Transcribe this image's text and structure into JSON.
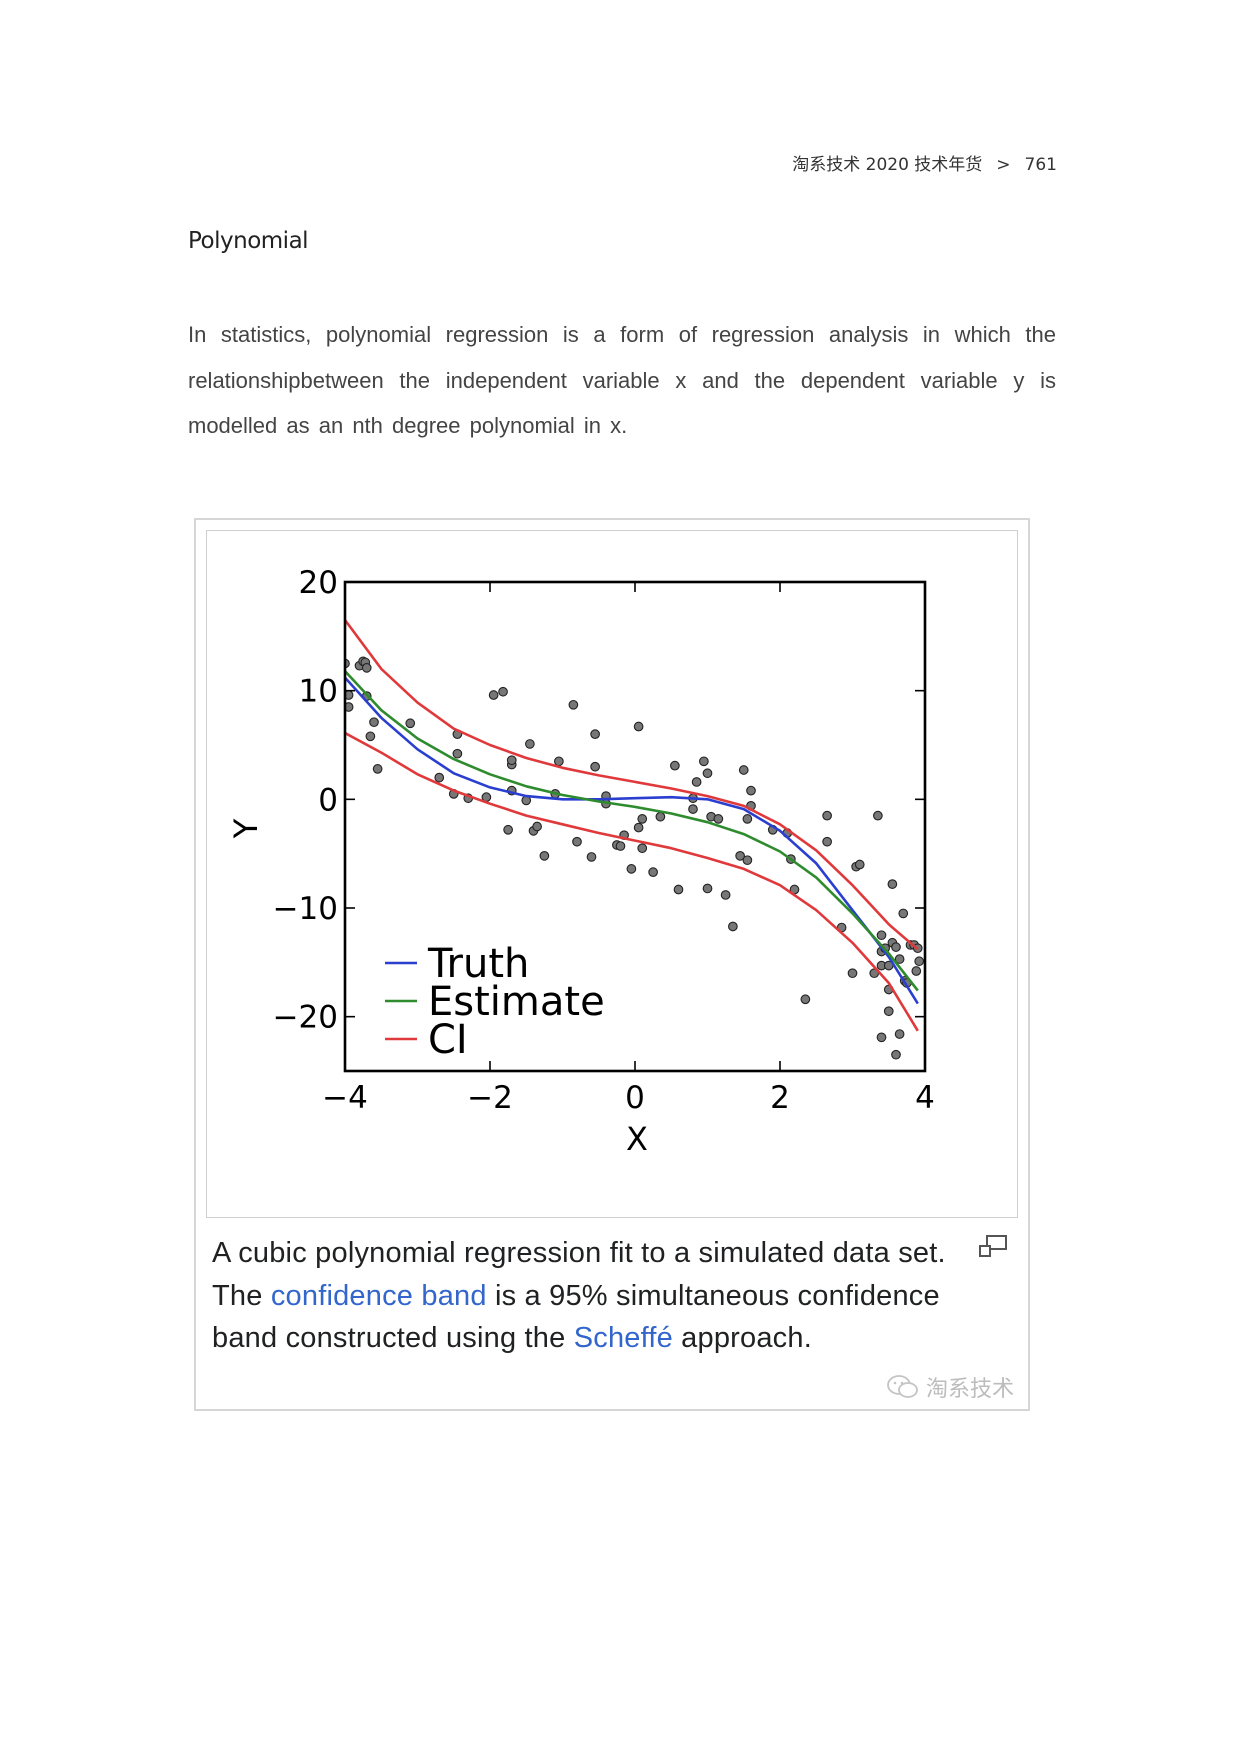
{
  "header": {
    "book_title": "淘系技术 2020 技术年货",
    "separator": ">",
    "page_number": "761"
  },
  "section_title": "Polynomial",
  "paragraph": "In statistics, polynomial regression is a form of regression analysis in which the relationshipbetween the independent variable x and the dependent variable y is modelled as an nth degree polynomial in x.",
  "figure": {
    "caption": {
      "part1": "A cubic polynomial regression fit to a simulated data set. The ",
      "link1": "confidence band",
      "part2": " is a 95% simultaneous confidence band constructed using the ",
      "link2": "Scheffé",
      "part3": " approach."
    },
    "enlarge_icon": "enlarge-icon",
    "watermark": "淘系技术",
    "watermark_icon": "wechat-icon"
  },
  "chart_data": {
    "type": "scatter",
    "xlabel": "X",
    "ylabel": "Y",
    "xlim": [
      -4,
      4
    ],
    "ylim": [
      -25,
      20
    ],
    "xticks": [
      -4,
      -2,
      0,
      2,
      4
    ],
    "yticks": [
      20,
      10,
      0,
      -10,
      -20
    ],
    "xtick_labels": [
      "−4",
      "−2",
      "0",
      "2",
      "4"
    ],
    "ytick_labels": [
      "20",
      "10",
      "0",
      "−10",
      "−20"
    ],
    "grid": false,
    "legend_position": "bottom-left",
    "colors": {
      "Truth": "#2a3fd0",
      "Estimate": "#2e8b2e",
      "CI": "#e0393b",
      "points": "#777777"
    },
    "lines": [
      {
        "name": "Truth",
        "x": [
          -4,
          -3.5,
          -3,
          -2.5,
          -2,
          -1.5,
          -1,
          -0.5,
          0,
          0.5,
          1,
          1.5,
          2,
          2.5,
          3,
          3.5,
          3.9
        ],
        "y": [
          11.2,
          7.5,
          4.6,
          2.4,
          1.1,
          0.3,
          0.0,
          0.0,
          0.1,
          0.2,
          0.0,
          -0.9,
          -2.9,
          -5.9,
          -10.2,
          -14.5,
          -18.8
        ]
      },
      {
        "name": "Estimate",
        "x": [
          -4,
          -3.5,
          -3,
          -2.5,
          -2,
          -1.5,
          -1,
          -0.5,
          0,
          0.5,
          1,
          1.5,
          2,
          2.5,
          3,
          3.5,
          3.9
        ],
        "y": [
          11.8,
          8.2,
          5.6,
          3.7,
          2.3,
          1.2,
          0.4,
          -0.2,
          -0.7,
          -1.3,
          -2.1,
          -3.2,
          -4.8,
          -7.2,
          -10.5,
          -14.2,
          -17.6
        ]
      },
      {
        "name": "CI",
        "x": [
          -4,
          -3.5,
          -3,
          -2.5,
          -2,
          -1.5,
          -1,
          -0.5,
          0,
          0.5,
          1,
          1.5,
          2,
          2.5,
          3,
          3.5,
          3.9
        ],
        "y": [
          16.5,
          12.0,
          8.9,
          6.5,
          5.0,
          3.8,
          2.9,
          2.2,
          1.6,
          1.0,
          0.3,
          -0.6,
          -2.3,
          -4.7,
          -7.9,
          -11.5,
          -13.8
        ]
      },
      {
        "name": "CI",
        "x": [
          -4,
          -3.5,
          -3,
          -2.5,
          -2,
          -1.5,
          -1,
          -0.5,
          0,
          0.5,
          1,
          1.5,
          2,
          2.5,
          3,
          3.5,
          3.9
        ],
        "y": [
          6.1,
          4.3,
          2.3,
          0.8,
          -0.4,
          -1.5,
          -2.3,
          -3.1,
          -3.8,
          -4.5,
          -5.4,
          -6.4,
          -7.9,
          -10.2,
          -13.2,
          -16.9,
          -21.3
        ]
      }
    ],
    "points": [
      [
        -4.0,
        12.5
      ],
      [
        -3.95,
        9.6
      ],
      [
        -3.95,
        8.5
      ],
      [
        -3.8,
        12.3
      ],
      [
        -3.75,
        12.7
      ],
      [
        -3.72,
        12.6
      ],
      [
        -3.7,
        12.1
      ],
      [
        -3.7,
        9.5
      ],
      [
        -3.65,
        5.8
      ],
      [
        -3.6,
        7.1
      ],
      [
        -3.55,
        2.8
      ],
      [
        -3.1,
        7.0
      ],
      [
        -2.7,
        2.0
      ],
      [
        -2.5,
        0.5
      ],
      [
        -2.45,
        6.0
      ],
      [
        -2.45,
        4.2
      ],
      [
        -2.3,
        0.1
      ],
      [
        -2.05,
        0.2
      ],
      [
        -1.95,
        9.6
      ],
      [
        -1.82,
        9.9
      ],
      [
        -1.75,
        -2.8
      ],
      [
        -1.7,
        0.8
      ],
      [
        -1.7,
        3.2
      ],
      [
        -1.7,
        3.6
      ],
      [
        -1.5,
        -0.1
      ],
      [
        -1.45,
        5.1
      ],
      [
        -1.4,
        -2.9
      ],
      [
        -1.35,
        -2.5
      ],
      [
        -1.25,
        -5.2
      ],
      [
        -1.1,
        0.5
      ],
      [
        -1.05,
        3.5
      ],
      [
        -0.85,
        8.7
      ],
      [
        -0.8,
        -3.9
      ],
      [
        -0.6,
        -5.3
      ],
      [
        -0.55,
        6.0
      ],
      [
        -0.55,
        3.0
      ],
      [
        -0.4,
        0.3
      ],
      [
        -0.4,
        -0.4
      ],
      [
        -0.25,
        -4.2
      ],
      [
        -0.2,
        -4.3
      ],
      [
        -0.15,
        -3.3
      ],
      [
        -0.05,
        -6.4
      ],
      [
        0.05,
        6.7
      ],
      [
        0.05,
        -2.6
      ],
      [
        0.1,
        -1.8
      ],
      [
        0.1,
        -4.5
      ],
      [
        0.25,
        -6.7
      ],
      [
        0.35,
        -1.6
      ],
      [
        0.55,
        3.1
      ],
      [
        0.6,
        -8.3
      ],
      [
        0.8,
        0.1
      ],
      [
        0.8,
        -0.9
      ],
      [
        0.85,
        1.6
      ],
      [
        0.95,
        3.5
      ],
      [
        1.0,
        -8.2
      ],
      [
        1.0,
        2.4
      ],
      [
        1.05,
        -1.6
      ],
      [
        1.15,
        -1.8
      ],
      [
        1.25,
        -8.8
      ],
      [
        1.35,
        -11.7
      ],
      [
        1.45,
        -5.2
      ],
      [
        1.5,
        2.7
      ],
      [
        1.55,
        -5.6
      ],
      [
        1.55,
        -1.8
      ],
      [
        1.6,
        0.8
      ],
      [
        1.6,
        -0.6
      ],
      [
        1.9,
        -2.8
      ],
      [
        2.1,
        -3.1
      ],
      [
        2.15,
        -5.5
      ],
      [
        2.2,
        -8.3
      ],
      [
        2.35,
        -18.4
      ],
      [
        2.65,
        -3.9
      ],
      [
        2.65,
        -1.5
      ],
      [
        2.85,
        -11.8
      ],
      [
        3.0,
        -16.0
      ],
      [
        3.05,
        -6.2
      ],
      [
        3.1,
        -6.0
      ],
      [
        3.3,
        -16.0
      ],
      [
        3.35,
        -1.5
      ],
      [
        3.4,
        -12.5
      ],
      [
        3.4,
        -14.0
      ],
      [
        3.4,
        -15.3
      ],
      [
        3.4,
        -21.9
      ],
      [
        3.45,
        -13.7
      ],
      [
        3.5,
        -15.3
      ],
      [
        3.5,
        -17.5
      ],
      [
        3.5,
        -19.5
      ],
      [
        3.55,
        -7.8
      ],
      [
        3.55,
        -13.2
      ],
      [
        3.6,
        -13.6
      ],
      [
        3.6,
        -23.5
      ],
      [
        3.65,
        -14.7
      ],
      [
        3.65,
        -21.6
      ],
      [
        3.7,
        -10.5
      ],
      [
        3.72,
        -16.7
      ],
      [
        3.75,
        -16.9
      ],
      [
        3.8,
        -13.4
      ],
      [
        3.85,
        -13.4
      ],
      [
        3.88,
        -15.8
      ],
      [
        3.9,
        -13.7
      ],
      [
        3.92,
        -14.9
      ]
    ]
  }
}
